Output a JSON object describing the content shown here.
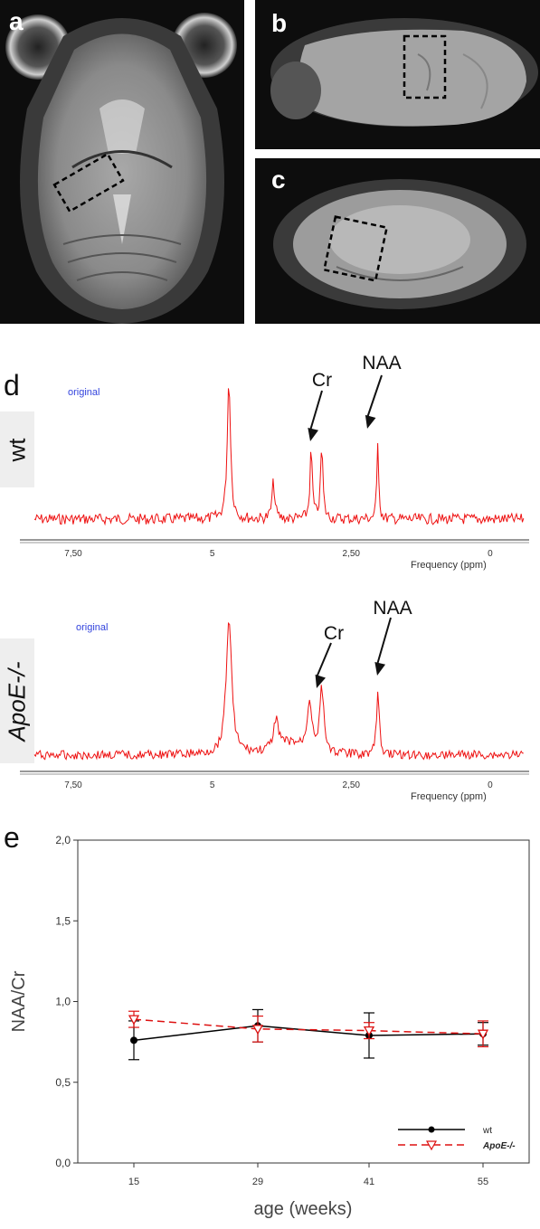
{
  "panels": {
    "a": "a",
    "b": "b",
    "c": "c",
    "d": "d",
    "e": "e"
  },
  "spectra": [
    {
      "row_label": "wt",
      "watermark": "original",
      "peak_labels": [
        "Cr",
        "NAA"
      ],
      "ticks": [
        "7,50",
        "5",
        "2,50",
        "0"
      ],
      "axis_title": "Frequency (ppm)"
    },
    {
      "row_label": "ApoE-/-",
      "watermark": "original",
      "peak_labels": [
        "Cr",
        "NAA"
      ],
      "ticks": [
        "7,50",
        "5",
        "2,50",
        "0"
      ],
      "axis_title": "Frequency (ppm)"
    }
  ],
  "colors": {
    "spectrum": "#ee1111",
    "wt": "#000000",
    "apoe": "#dd1111"
  },
  "chart_data": {
    "type": "line",
    "title": "",
    "xlabel": "age (weeks)",
    "ylabel": "NAA/Cr",
    "categories": [
      "15",
      "29",
      "41",
      "55"
    ],
    "ylim": [
      0.0,
      2.0
    ],
    "yticks": [
      "0,0",
      "0,5",
      "1,0",
      "1,5",
      "2,0"
    ],
    "series": [
      {
        "name": "wt",
        "values": [
          0.76,
          0.85,
          0.79,
          0.8
        ],
        "errors": [
          0.12,
          0.1,
          0.14,
          0.07
        ],
        "style": "solid",
        "marker": "filled-circle"
      },
      {
        "name": "ApoE-/-",
        "values": [
          0.89,
          0.83,
          0.82,
          0.8
        ],
        "errors": [
          0.05,
          0.08,
          0.05,
          0.08
        ],
        "style": "dashed",
        "marker": "open-triangle-down"
      }
    ],
    "legend": "bottom-right",
    "grid": false
  }
}
